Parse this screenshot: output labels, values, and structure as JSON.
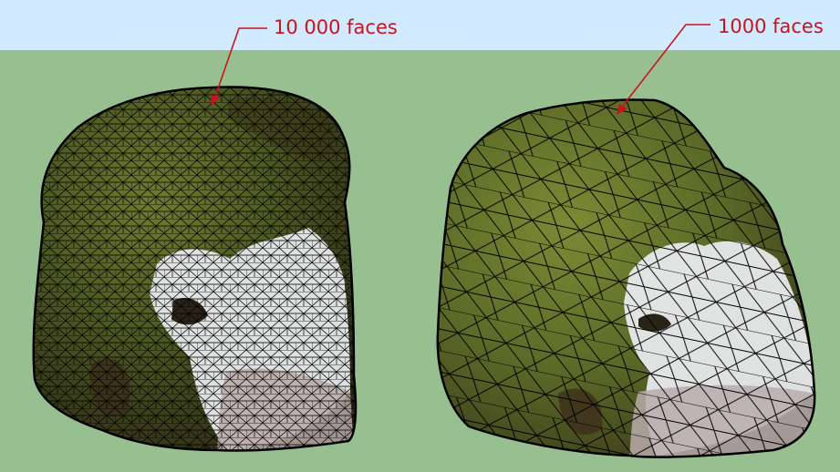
{
  "scene": {
    "sky_color": "#d1eaff",
    "ground_color": "#98bf8f",
    "annotation_color": "#c8141b",
    "wire_color": "#000000",
    "models": [
      {
        "label": "10 000 faces",
        "mesh_density": "high"
      },
      {
        "label": "1000 faces",
        "mesh_density": "low"
      }
    ]
  }
}
